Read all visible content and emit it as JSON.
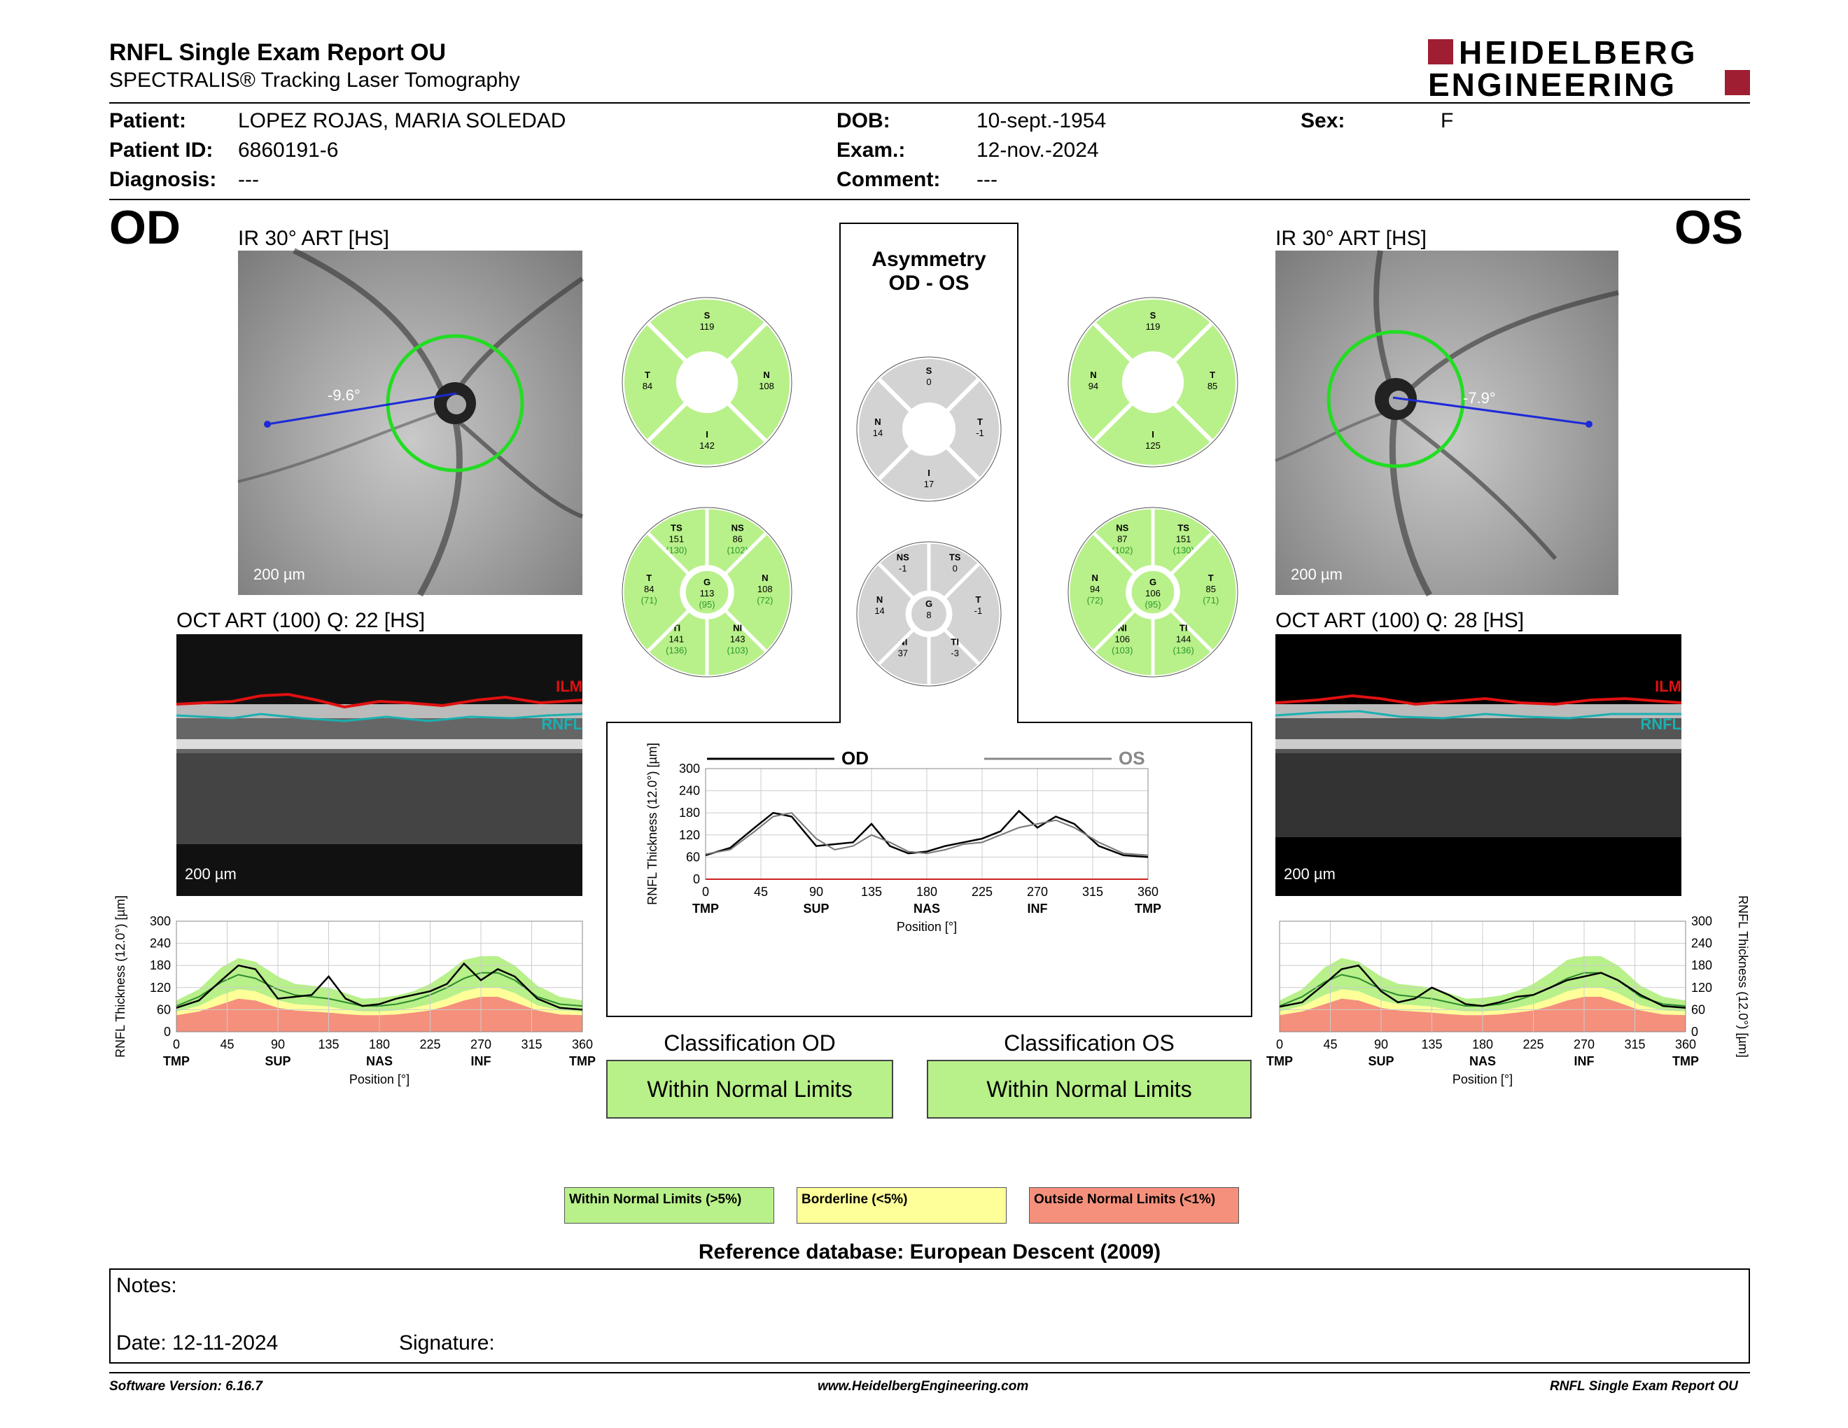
{
  "header": {
    "title": "RNFL Single Exam Report OU",
    "subtitle": "SPECTRALIS® Tracking Laser Tomography",
    "logo_line1": "HEIDELBERG",
    "logo_line2": "ENGINEERING"
  },
  "patient": {
    "patient_label": "Patient:",
    "patient_value": "LOPEZ ROJAS, MARIA SOLEDAD",
    "id_label": "Patient ID:",
    "id_value": "6860191-6",
    "diagnosis_label": "Diagnosis:",
    "diagnosis_value": "---",
    "dob_label": "DOB:",
    "dob_value": "10-sept.-1954",
    "exam_label": "Exam.:",
    "exam_value": "12-nov.-2024",
    "comment_label": "Comment:",
    "comment_value": "---",
    "sex_label": "Sex:",
    "sex_value": "F"
  },
  "od": {
    "eye": "OD",
    "ir_label": "IR 30° ART [HS]",
    "angle": "-9.6°",
    "ir_scale": "200 µm",
    "oct_label": "OCT ART (100) Q: 22 [HS]",
    "oct_scale": "200 µm",
    "ilm": "ILM",
    "rnfl": "RNFL",
    "sectors4": {
      "S": "119",
      "N": "108",
      "I": "142",
      "T": "84"
    },
    "sectors6": {
      "TS": {
        "v": "151",
        "n": "(130)"
      },
      "NS": {
        "v": "86",
        "n": "(102)"
      },
      "T": {
        "v": "84",
        "n": "(71)"
      },
      "G": {
        "v": "113",
        "n": "(95)"
      },
      "N": {
        "v": "108",
        "n": "(72)"
      },
      "TI": {
        "v": "141",
        "n": "(136)"
      },
      "NI": {
        "v": "143",
        "n": "(103)"
      }
    },
    "classification_label": "Classification OD",
    "classification_value": "Within Normal Limits"
  },
  "os": {
    "eye": "OS",
    "ir_label": "IR 30° ART [HS]",
    "angle": "-7.9°",
    "ir_scale": "200 µm",
    "oct_label": "OCT ART (100) Q: 28 [HS]",
    "oct_scale": "200 µm",
    "ilm": "ILM",
    "rnfl": "RNFL",
    "sectors4": {
      "S": "119",
      "N": "94",
      "I": "125",
      "T": "85"
    },
    "sectors6": {
      "NS": {
        "v": "87",
        "n": "(102)"
      },
      "TS": {
        "v": "151",
        "n": "(130)"
      },
      "N": {
        "v": "94",
        "n": "(72)"
      },
      "G": {
        "v": "106",
        "n": "(95)"
      },
      "T": {
        "v": "85",
        "n": "(71)"
      },
      "NI": {
        "v": "106",
        "n": "(103)"
      },
      "TI": {
        "v": "144",
        "n": "(136)"
      }
    },
    "classification_label": "Classification OS",
    "classification_value": "Within Normal Limits"
  },
  "asymmetry": {
    "title1": "Asymmetry",
    "title2": "OD - OS",
    "sectors4": {
      "S": "0",
      "N": "14",
      "T": "-1",
      "I": "17"
    },
    "sectors6": {
      "NS": "-1",
      "TS": "0",
      "N": "14",
      "G": "8",
      "T": "-1",
      "NI": "37",
      "TI": "-3"
    }
  },
  "legend": {
    "wnl": "Within Normal Limits (>5%)",
    "bl": "Borderline (<5%)",
    "onl": "Outside Normal Limits (<1%)",
    "reference": "Reference database: European Descent (2009)"
  },
  "notes": {
    "notes_label": "Notes:",
    "date_label": "Date: 12-11-2024",
    "signature_label": "Signature:"
  },
  "footer": {
    "software": "Software Version: 6.16.7",
    "website": "www.HeidelbergEngineering.com",
    "report": "RNFL Single Exam Report OU"
  },
  "colors": {
    "green": "#b8f08a",
    "yellow": "#ffff99",
    "red": "#f4907c",
    "accent": "#a01e32",
    "gray_sector": "#d3d3d3"
  },
  "chart_data": [
    {
      "type": "area",
      "id": "od_profile",
      "ylabel": "RNFL Thickness (12.0°) [µm]",
      "xlabel": "Position [°]",
      "xlim": [
        0,
        360
      ],
      "ylim": [
        0,
        300
      ],
      "xticks": [
        0,
        45,
        90,
        135,
        180,
        225,
        270,
        315,
        360
      ],
      "yticks": [
        0,
        60,
        120,
        180,
        240,
        300
      ],
      "region_labels": [
        "TMP",
        "SUP",
        "NAS",
        "INF",
        "TMP"
      ],
      "x": [
        0,
        20,
        40,
        55,
        70,
        90,
        105,
        120,
        135,
        150,
        165,
        180,
        195,
        210,
        225,
        240,
        255,
        270,
        285,
        300,
        320,
        340,
        360
      ],
      "series": [
        {
          "name": "OD",
          "values": [
            65,
            85,
            140,
            180,
            170,
            90,
            95,
            100,
            150,
            90,
            70,
            75,
            90,
            100,
            110,
            130,
            185,
            140,
            170,
            150,
            90,
            65,
            60
          ]
        }
      ],
      "bands": {
        "mean": [
          70,
          95,
          135,
          155,
          145,
          115,
          100,
          95,
          90,
          80,
          70,
          70,
          75,
          85,
          100,
          120,
          145,
          160,
          160,
          140,
          95,
          75,
          70
        ],
        "p5": [
          55,
          70,
          100,
          115,
          110,
          85,
          75,
          72,
          68,
          60,
          55,
          55,
          58,
          65,
          75,
          90,
          110,
          120,
          120,
          105,
          72,
          58,
          55
        ],
        "p1": [
          45,
          55,
          75,
          90,
          85,
          65,
          58,
          55,
          52,
          48,
          45,
          45,
          47,
          52,
          58,
          70,
          85,
          95,
          95,
          80,
          58,
          47,
          45
        ],
        "p95": [
          85,
          115,
          175,
          200,
          190,
          150,
          130,
          125,
          120,
          105,
          90,
          92,
          98,
          110,
          130,
          160,
          195,
          205,
          205,
          180,
          125,
          95,
          85
        ]
      }
    },
    {
      "type": "line",
      "id": "asymmetry_profile",
      "ylabel": "RNFL Thickness (12.0°) [µm]",
      "xlabel": "Position [°]",
      "xlim": [
        0,
        360
      ],
      "ylim": [
        0,
        300
      ],
      "xticks": [
        0,
        45,
        90,
        135,
        180,
        225,
        270,
        315,
        360
      ],
      "yticks": [
        0,
        60,
        120,
        180,
        240,
        300
      ],
      "region_labels": [
        "TMP",
        "SUP",
        "NAS",
        "INF",
        "TMP"
      ],
      "x": [
        0,
        20,
        40,
        55,
        70,
        90,
        105,
        120,
        135,
        150,
        165,
        180,
        195,
        210,
        225,
        240,
        255,
        270,
        285,
        300,
        320,
        340,
        360
      ],
      "series": [
        {
          "name": "OD",
          "values": [
            65,
            85,
            140,
            180,
            170,
            90,
            95,
            100,
            150,
            90,
            70,
            75,
            90,
            100,
            110,
            130,
            185,
            140,
            170,
            150,
            90,
            65,
            60
          ]
        },
        {
          "name": "OS",
          "values": [
            68,
            80,
            130,
            170,
            180,
            110,
            80,
            90,
            120,
            100,
            75,
            70,
            80,
            95,
            100,
            120,
            140,
            150,
            160,
            140,
            100,
            70,
            65
          ]
        }
      ]
    },
    {
      "type": "area",
      "id": "os_profile",
      "ylabel": "RNFL Thickness (12.0°) [µm]",
      "xlabel": "Position [°]",
      "xlim": [
        0,
        360
      ],
      "ylim": [
        0,
        300
      ],
      "xticks": [
        0,
        45,
        90,
        135,
        180,
        225,
        270,
        315,
        360
      ],
      "yticks": [
        0,
        60,
        120,
        180,
        240,
        300
      ],
      "region_labels": [
        "TMP",
        "SUP",
        "NAS",
        "INF",
        "TMP"
      ],
      "x": [
        0,
        20,
        40,
        55,
        70,
        90,
        105,
        120,
        135,
        150,
        165,
        180,
        195,
        210,
        225,
        240,
        255,
        270,
        285,
        300,
        320,
        340,
        360
      ],
      "series": [
        {
          "name": "OS",
          "values": [
            68,
            80,
            130,
            170,
            180,
            110,
            80,
            90,
            120,
            100,
            75,
            70,
            80,
            95,
            100,
            120,
            140,
            150,
            160,
            140,
            100,
            70,
            65
          ]
        }
      ],
      "bands": {
        "mean": [
          70,
          95,
          135,
          155,
          145,
          115,
          100,
          95,
          90,
          80,
          70,
          70,
          75,
          85,
          100,
          120,
          145,
          160,
          160,
          140,
          95,
          75,
          70
        ],
        "p5": [
          55,
          70,
          100,
          115,
          110,
          85,
          75,
          72,
          68,
          60,
          55,
          55,
          58,
          65,
          75,
          90,
          110,
          120,
          120,
          105,
          72,
          58,
          55
        ],
        "p1": [
          45,
          55,
          75,
          90,
          85,
          65,
          58,
          55,
          52,
          48,
          45,
          45,
          47,
          52,
          58,
          70,
          85,
          95,
          95,
          80,
          58,
          47,
          45
        ],
        "p95": [
          85,
          115,
          175,
          200,
          190,
          150,
          130,
          125,
          120,
          105,
          90,
          92,
          98,
          110,
          130,
          160,
          195,
          205,
          205,
          180,
          125,
          95,
          85
        ]
      }
    }
  ]
}
